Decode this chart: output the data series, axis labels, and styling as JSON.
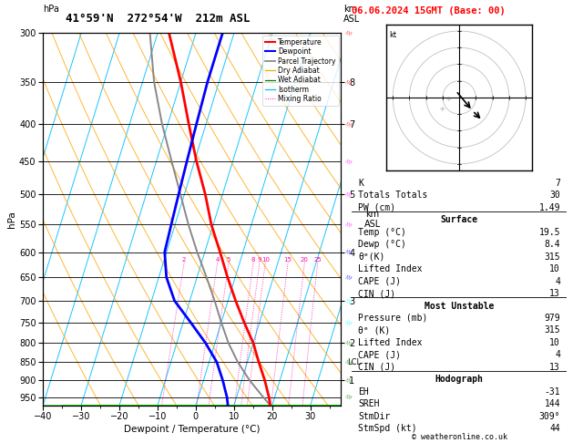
{
  "title_left": "41°59'N  272°54'W  212m ASL",
  "title_right": "06.06.2024 15GMT (Base: 00)",
  "xlabel": "Dewpoint / Temperature (°C)",
  "ylabel_left": "hPa",
  "p_levels": [
    300,
    350,
    400,
    450,
    500,
    550,
    600,
    650,
    700,
    750,
    800,
    850,
    900,
    950
  ],
  "p_min": 300,
  "p_max": 975,
  "t_min": -40,
  "t_max": 38,
  "isotherm_color": "#00bfff",
  "dry_adiabat_color": "#ffa500",
  "wet_adiabat_color": "#00cc00",
  "mixing_ratio_color": "#ff00aa",
  "temp_profile_p": [
    975,
    950,
    900,
    850,
    800,
    750,
    700,
    650,
    600,
    550,
    500,
    450,
    400,
    350,
    300
  ],
  "temp_profile_t": [
    19.5,
    18.5,
    16.0,
    13.0,
    10.0,
    6.0,
    2.0,
    -2.0,
    -6.0,
    -10.5,
    -14.5,
    -19.5,
    -24.5,
    -30.0,
    -37.0
  ],
  "dewp_profile_p": [
    975,
    950,
    900,
    850,
    800,
    750,
    700,
    650,
    600,
    550,
    500,
    450,
    400,
    350,
    300
  ],
  "dewp_profile_t": [
    8.4,
    7.5,
    5.0,
    2.0,
    -2.5,
    -8.0,
    -14.0,
    -18.0,
    -20.5,
    -21.0,
    -21.5,
    -22.0,
    -22.5,
    -23.0,
    -23.0
  ],
  "parcel_profile_p": [
    975,
    950,
    900,
    850,
    800,
    750,
    700,
    650,
    600,
    550,
    500,
    450,
    400,
    350,
    300
  ],
  "parcel_profile_t": [
    19.5,
    17.0,
    12.0,
    7.5,
    3.5,
    0.0,
    -3.5,
    -7.5,
    -12.0,
    -16.5,
    -21.0,
    -26.0,
    -31.5,
    -37.0,
    -42.0
  ],
  "temp_color": "#ff0000",
  "dewp_color": "#0000ff",
  "parcel_color": "#888888",
  "background_color": "#ffffff",
  "lcl_pressure": 852,
  "km_labels_p": [
    350,
    400,
    500,
    600,
    700,
    800,
    900
  ],
  "km_labels_v": [
    "8",
    "7",
    "5",
    "4",
    "3",
    "2",
    "1"
  ],
  "stats_k": 7,
  "stats_tt": 30,
  "stats_pw": "1.49",
  "surf_temp": "19.5",
  "surf_dewp": "8.4",
  "surf_theta": "315",
  "surf_li": "10",
  "surf_cape": "4",
  "surf_cin": "13",
  "mu_pressure": "979",
  "mu_theta": "315",
  "mu_li": "10",
  "mu_cape": "4",
  "mu_cin": "13",
  "hodo_eh": "-31",
  "hodo_sreh": "144",
  "hodo_stmdir": "309°",
  "hodo_stmspd": "44",
  "copyright": "© weatheronline.co.uk"
}
